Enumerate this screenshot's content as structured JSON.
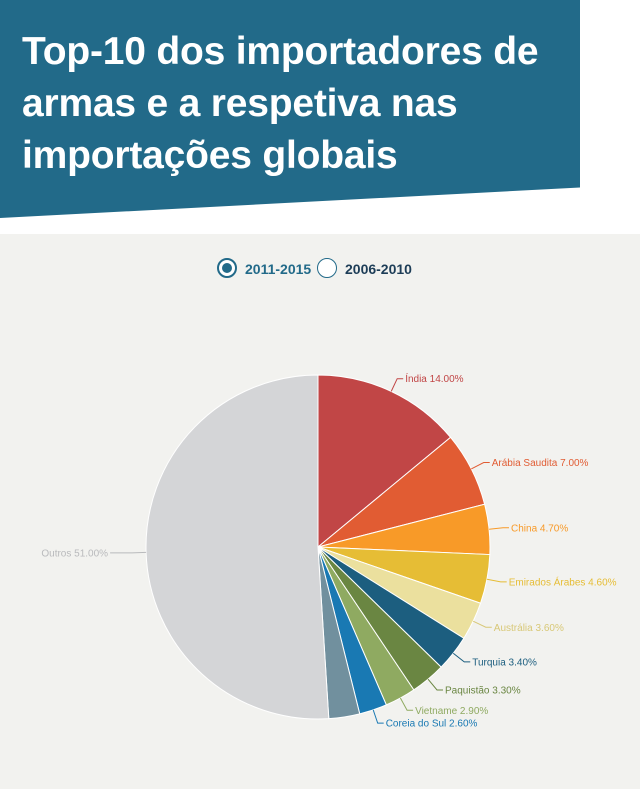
{
  "header": {
    "title_line1": "Top-10 dos importadores de",
    "title_line2": "armas e a respetiva nas",
    "title_line3": "importações globais"
  },
  "legend": {
    "selected": {
      "label": "2011-2015",
      "active": true
    },
    "other": {
      "label": "2006-2010",
      "active": false
    }
  },
  "colors": {
    "header_bg": "#226a89",
    "panel_bg": "#f2f2ef"
  },
  "chart_data": {
    "type": "pie",
    "period": "2011-2015",
    "unit": "%",
    "slices": [
      {
        "name": "Índia",
        "value": 14.0,
        "label": "Índia 14.00%",
        "color": "#c14646"
      },
      {
        "name": "Arábia Saudita",
        "value": 7.0,
        "label": "Arábia Saudita 7.00%",
        "color": "#e15c33"
      },
      {
        "name": "China",
        "value": 4.7,
        "label": "China 4.70%",
        "color": "#f89a28"
      },
      {
        "name": "Emirados Árabes",
        "value": 4.6,
        "label": "Emirados Árabes 4.60%",
        "color": "#e6bd35"
      },
      {
        "name": "Austrália",
        "value": 3.6,
        "label": "Austrália 3.60%",
        "color": "#ebe09e"
      },
      {
        "name": "Turquia",
        "value": 3.4,
        "label": "Turquia 3.40%",
        "color": "#1c5e7f"
      },
      {
        "name": "Paquistão",
        "value": 3.3,
        "label": "Paquistão 3.30%",
        "color": "#6a8642"
      },
      {
        "name": "Vietname",
        "value": 2.9,
        "label": "Vietname 2.90%",
        "color": "#8faa61"
      },
      {
        "name": "Coreia do Sul",
        "value": 2.6,
        "label": "Coreia do Sul 2.60%",
        "color": "#1979b3"
      },
      {
        "name": "Unlabeled",
        "value": 2.9,
        "label": "",
        "color": "#71909e"
      },
      {
        "name": "Outros",
        "value": 51.0,
        "label": "Outros 51.00%",
        "color": "#d4d5d7"
      }
    ]
  }
}
